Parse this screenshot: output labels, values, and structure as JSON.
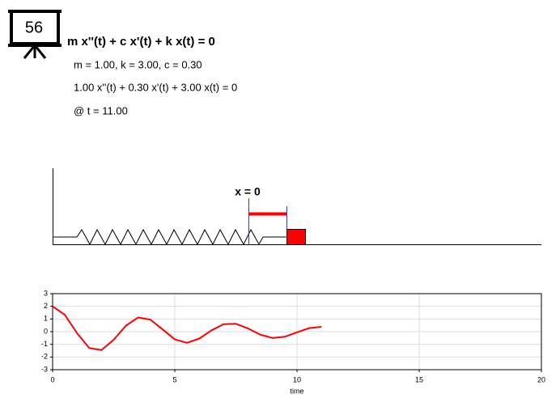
{
  "badge": "56",
  "equation": "m x''(t) + c x'(t) + k x(t) = 0",
  "parameters": "m = 1.00, k = 3.00, c = 0.30",
  "instance": "1.00 x''(t) + 0.30 x'(t) + 3.00 x(t) = 0",
  "time_label": "@ t = 11.00",
  "diagram": {
    "label": "x = 0"
  },
  "chart_data": {
    "type": "line",
    "x_label": "time",
    "x": [
      0,
      0.5,
      1,
      1.5,
      2,
      2.5,
      3,
      3.5,
      4,
      4.5,
      5,
      5.5,
      6,
      6.5,
      7,
      7.5,
      8,
      8.5,
      9,
      9.5,
      10,
      10.5,
      11
    ],
    "values": [
      2,
      1.33,
      -0.12,
      -1.29,
      -1.45,
      -0.64,
      0.47,
      1.12,
      0.95,
      0.18,
      -0.61,
      -0.88,
      -0.55,
      0.1,
      0.59,
      0.62,
      0.25,
      -0.24,
      -0.5,
      -0.4,
      -0.05,
      0.28,
      0.38
    ],
    "color": "#ff0000",
    "xlim": [
      0,
      20
    ],
    "ylim": [
      -3,
      3
    ],
    "xticks": [
      0,
      5,
      10,
      15,
      20
    ],
    "yticks": [
      -3,
      -2,
      -1,
      0,
      1,
      2,
      3
    ],
    "grid": true
  }
}
